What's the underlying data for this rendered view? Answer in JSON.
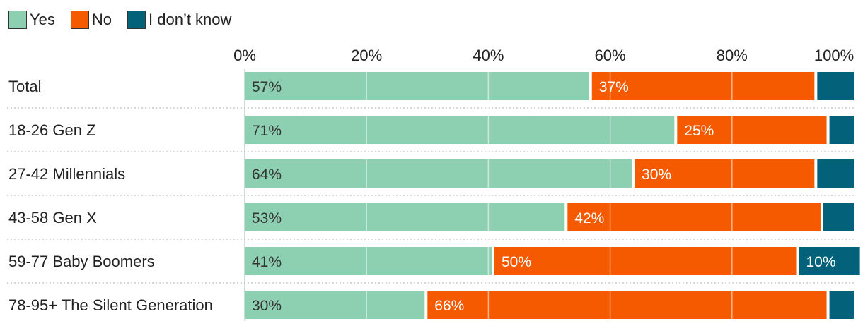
{
  "chart_data": {
    "type": "bar",
    "orientation": "horizontal",
    "stacked": true,
    "title": "",
    "xlabel": "",
    "ylabel": "",
    "xlim": [
      0,
      100
    ],
    "x_ticks": [
      "0%",
      "20%",
      "40%",
      "60%",
      "80%",
      "100%"
    ],
    "grid": true,
    "legend_position": "top-left",
    "categories": [
      "Total",
      "18-26 Gen Z",
      "27-42 Millennials",
      "43-58 Gen X",
      "59-77 Baby Boomers",
      "78-95+ The Silent Generation"
    ],
    "series": [
      {
        "name": "Yes",
        "color": "#8dd0b1",
        "values": [
          57,
          71,
          64,
          53,
          41,
          30
        ],
        "labels": [
          "57%",
          "71%",
          "64%",
          "53%",
          "41%",
          "30%"
        ]
      },
      {
        "name": "No",
        "color": "#f55a00",
        "values": [
          37,
          25,
          30,
          42,
          50,
          66
        ],
        "labels": [
          "37%",
          "25%",
          "30%",
          "42%",
          "50%",
          "66%"
        ]
      },
      {
        "name": "I don’t know",
        "color": "#03627a",
        "values": [
          6,
          4,
          6,
          5,
          10,
          4
        ],
        "labels": [
          "",
          "",
          "",
          "",
          "10%",
          ""
        ]
      }
    ]
  }
}
